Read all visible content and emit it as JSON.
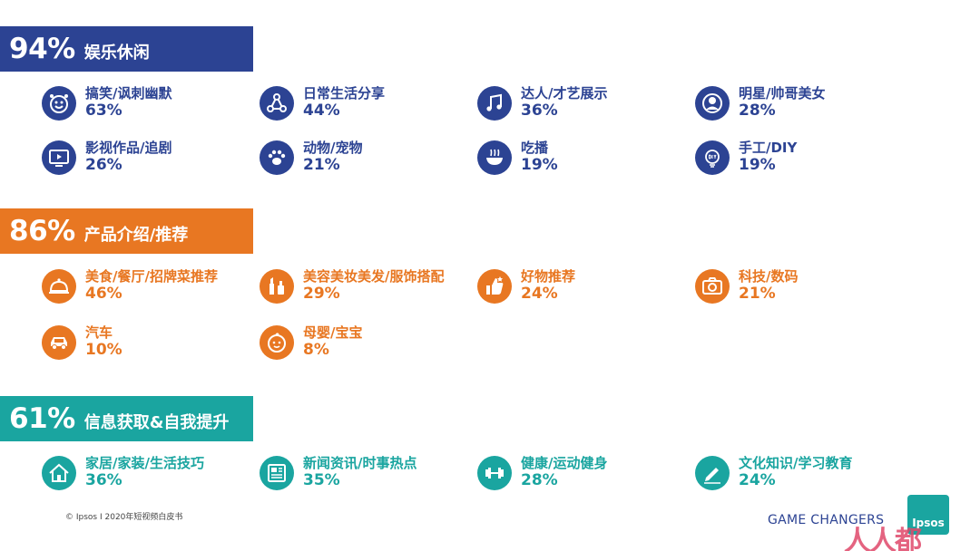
{
  "colors": {
    "blue": "#2c4393",
    "orange": "#e87722",
    "teal": "#1aa5a0"
  },
  "sections": [
    {
      "percent": "94%",
      "title": "娱乐休闲",
      "items": [
        {
          "label": "搞笑/讽刺幽默",
          "value": "63%",
          "icon": "clown-face-icon"
        },
        {
          "label": "日常生活分享",
          "value": "44%",
          "icon": "share-nodes-icon"
        },
        {
          "label": "达人/才艺展示",
          "value": "36%",
          "icon": "music-note-icon"
        },
        {
          "label": "明星/帅哥美女",
          "value": "28%",
          "icon": "person-icon"
        },
        {
          "label": "影视作品/追剧",
          "value": "26%",
          "icon": "tv-play-icon"
        },
        {
          "label": "动物/宠物",
          "value": "21%",
          "icon": "paw-icon"
        },
        {
          "label": "吃播",
          "value": "19%",
          "icon": "noodle-bowl-icon"
        },
        {
          "label": "手工/DIY",
          "value": "19%",
          "icon": "diy-bulb-icon"
        }
      ]
    },
    {
      "percent": "86%",
      "title": "产品介绍/推荐",
      "items": [
        {
          "label": "美食/餐厅/招牌菜推荐",
          "value": "46%",
          "icon": "food-cloche-icon"
        },
        {
          "label": "美容美妆美发/服饰搭配",
          "value": "29%",
          "icon": "cosmetics-icon"
        },
        {
          "label": "好物推荐",
          "value": "24%",
          "icon": "thumbs-up-icon"
        },
        {
          "label": "科技/数码",
          "value": "21%",
          "icon": "camera-icon"
        },
        {
          "label": "汽车",
          "value": "10%",
          "icon": "car-icon"
        },
        {
          "label": "母婴/宝宝",
          "value": "8%",
          "icon": "baby-face-icon"
        }
      ]
    },
    {
      "percent": "61%",
      "title": "信息获取&自我提升",
      "items": [
        {
          "label": "家居/家装/生活技巧",
          "value": "36%",
          "icon": "house-icon"
        },
        {
          "label": "新闻资讯/时事热点",
          "value": "35%",
          "icon": "newspaper-icon"
        },
        {
          "label": "健康/运动健身",
          "value": "28%",
          "icon": "dumbbell-icon"
        },
        {
          "label": "文化知识/学习教育",
          "value": "24%",
          "icon": "pencil-icon"
        }
      ]
    }
  ],
  "footer": {
    "copyright": "© Ipsos I 2020年短视频白皮书"
  },
  "brand": {
    "tagline": "GAME CHANGERS",
    "logo": "Ipsos",
    "watermark": "人人都"
  }
}
